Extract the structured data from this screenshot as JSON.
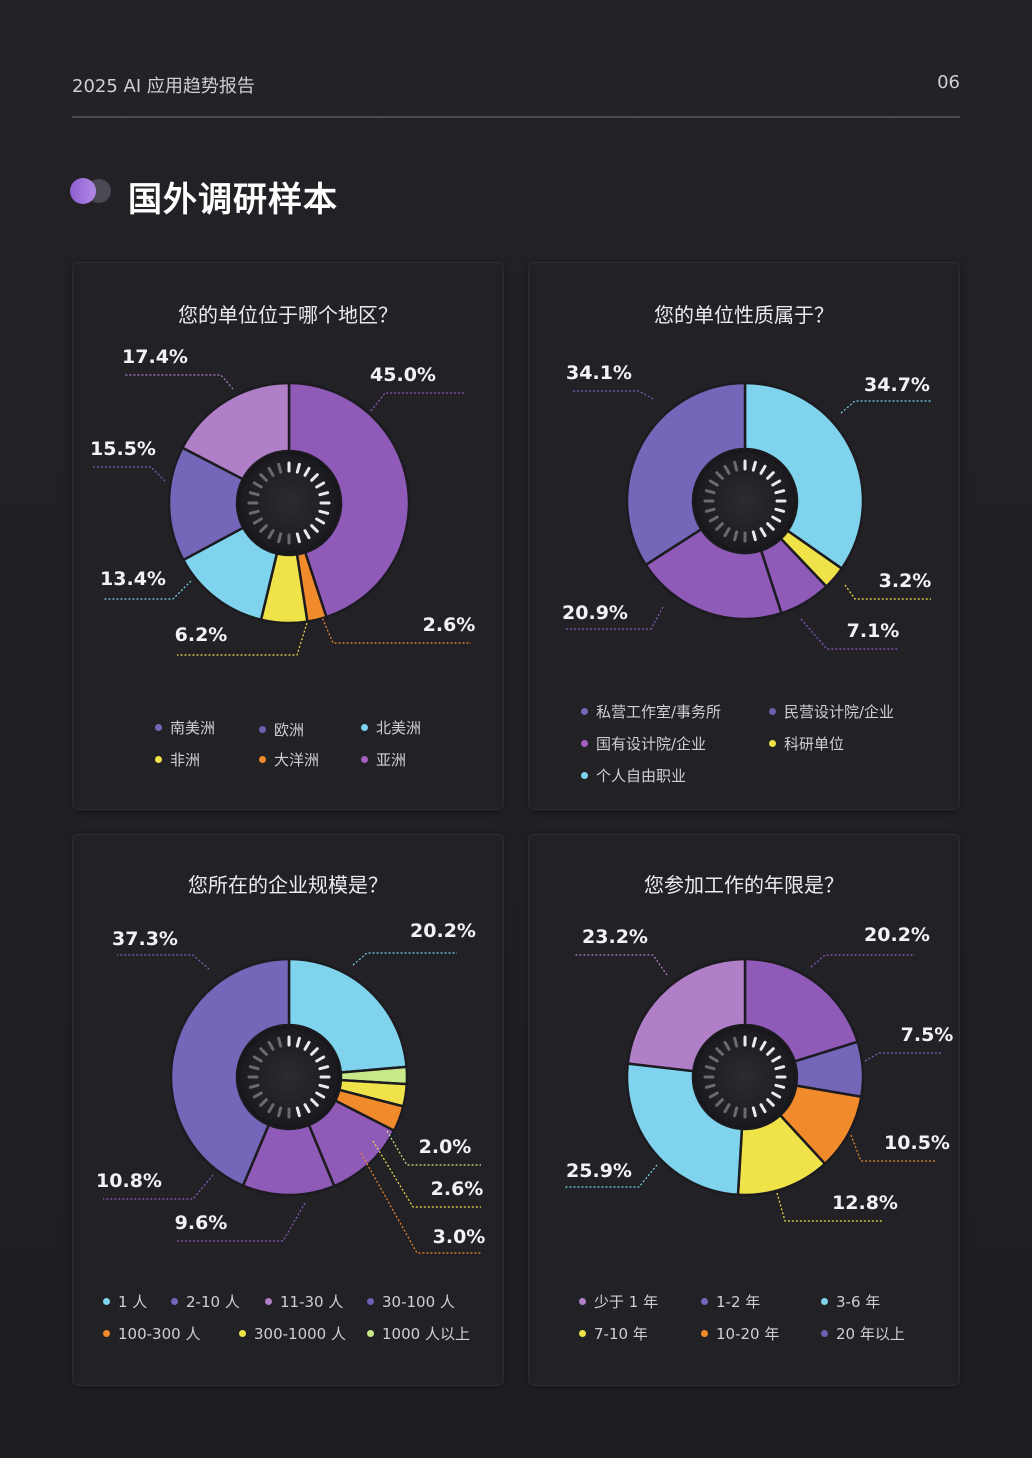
{
  "header": {
    "report_title": "2025 AI 应用趋势报告",
    "page_number": "06"
  },
  "section": {
    "title": "国外调研样本"
  },
  "colors": {
    "lavender": "#b07fc7",
    "indigo": "#7466b8",
    "purple": "#8f5ab8",
    "cyan": "#7fd3ec",
    "yellow": "#f0e34a",
    "orange": "#f08a2a",
    "lime": "#c9e88a"
  },
  "chart_data": [
    {
      "type": "pie",
      "title": "您的单位位于哪个地区？",
      "categories": [
        "亚洲",
        "大洋洲",
        "非洲",
        "北美洲",
        "欧洲",
        "南美洲"
      ],
      "values": [
        45.0,
        2.6,
        6.2,
        13.4,
        15.5,
        17.4
      ],
      "value_labels": [
        "45.0%",
        "2.6%",
        "6.2%",
        "13.4%",
        "15.5%",
        "17.4%"
      ],
      "legend": [
        "南美洲",
        "欧洲",
        "北美洲",
        "非洲",
        "大洋洲",
        "亚洲"
      ]
    },
    {
      "type": "pie",
      "title": "您的单位性质属于？",
      "categories": [
        "个人自由职业",
        "科研单位",
        "民营设计院/企业",
        "国有设计院/企业",
        "私营工作室/事务所"
      ],
      "values": [
        34.7,
        3.2,
        7.1,
        20.9,
        34.1
      ],
      "value_labels": [
        "34.7%",
        "3.2%",
        "7.1%",
        "20.9%",
        "34.1%"
      ],
      "legend": [
        "私营工作室/事务所",
        "民营设计院/企业",
        "国有设计院/企业",
        "科研单位",
        "个人自由职业"
      ]
    },
    {
      "type": "pie",
      "title": "您所在的企业规模是？",
      "categories": [
        "1 人",
        "1000 人以上",
        "300-1000 人",
        "100-300 人",
        "30-100 人",
        "11-30 人",
        "2-10 人"
      ],
      "values": [
        20.2,
        2.0,
        2.6,
        3.0,
        9.6,
        10.8,
        37.3
      ],
      "value_labels": [
        "20.2%",
        "2.0%",
        "2.6%",
        "3.0%",
        "9.6%",
        "10.8%",
        "37.3%"
      ],
      "legend": [
        "1 人",
        "2-10 人",
        "11-30 人",
        "30-100 人",
        "100-300 人",
        "300-1000 人",
        "1000 人以上"
      ]
    },
    {
      "type": "pie",
      "title": "您参加工作的年限是？",
      "categories": [
        "少于 1 年",
        "20 年以上",
        "10-20 年",
        "7-10 年",
        "3-6 年",
        "1-2 年"
      ],
      "values": [
        20.2,
        7.5,
        10.5,
        12.8,
        25.9,
        23.2
      ],
      "value_labels": [
        "20.2%",
        "7.5%",
        "10.5%",
        "12.8%",
        "25.9%",
        "23.2%"
      ],
      "legend": [
        "少于 1 年",
        "1-2 年",
        "3-6 年",
        "7-10 年",
        "10-20 年",
        "20 年以上"
      ]
    }
  ]
}
